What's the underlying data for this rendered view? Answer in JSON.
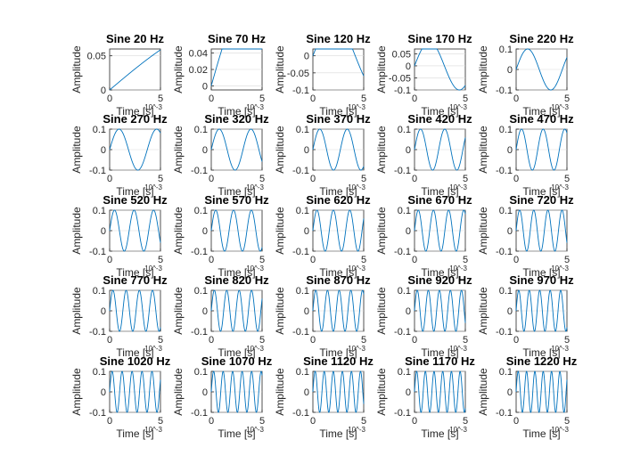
{
  "colors": {
    "line": "#0072bd",
    "axis": "#262626",
    "background": "#ffffff"
  },
  "chart_data": {
    "type": "line",
    "layout": "5x5 grid of subplots",
    "shared": {
      "xlabel": "Time [s]",
      "ylabel": "Amplitude",
      "x_exponent": "10^-3",
      "xlim": [
        0,
        5
      ],
      "x_ticks": [
        0,
        5
      ],
      "x_unit_scale": 0.001,
      "amplitude": 0.1
    },
    "subplots": [
      {
        "title": "Sine 20 Hz",
        "frequency_hz": 20,
        "ylim": [
          0,
          0.06
        ],
        "y_ticks": [
          0,
          0.05
        ],
        "y_tick_labels": [
          "0",
          "0.05"
        ]
      },
      {
        "title": "Sine 70 Hz",
        "frequency_hz": 70,
        "ylim": [
          -0.005,
          0.045
        ],
        "y_ticks": [
          0,
          0.02,
          0.04
        ],
        "y_tick_labels": [
          "0",
          "0.02",
          "0.04"
        ]
      },
      {
        "title": "Sine 120 Hz",
        "frequency_hz": 120,
        "ylim": [
          -0.1,
          0.02
        ],
        "y_ticks": [
          0,
          -0.05,
          -0.1
        ],
        "y_tick_labels": [
          "0",
          "-0.05",
          "-0.1"
        ]
      },
      {
        "title": "Sine 170 Hz",
        "frequency_hz": 170,
        "ylim": [
          -0.1,
          0.07
        ],
        "y_ticks": [
          0.05,
          0,
          -0.05,
          -0.1
        ],
        "y_tick_labels": [
          "0.05",
          "0",
          "-0.05",
          "-0.1"
        ]
      },
      {
        "title": "Sine 220 Hz",
        "frequency_hz": 220,
        "ylim": [
          -0.1,
          0.1
        ],
        "y_ticks": [
          0.1,
          0,
          -0.1
        ],
        "y_tick_labels": [
          "0.1",
          "0",
          "-0.1"
        ]
      },
      {
        "title": "Sine 270 Hz",
        "frequency_hz": 270,
        "ylim": [
          -0.1,
          0.1
        ],
        "y_ticks": [
          0.1,
          0,
          -0.1
        ],
        "y_tick_labels": [
          "0.1",
          "0",
          "-0.1"
        ]
      },
      {
        "title": "Sine 320 Hz",
        "frequency_hz": 320,
        "ylim": [
          -0.1,
          0.1
        ],
        "y_ticks": [
          0.1,
          0,
          -0.1
        ],
        "y_tick_labels": [
          "0.1",
          "0",
          "-0.1"
        ]
      },
      {
        "title": "Sine 370 Hz",
        "frequency_hz": 370,
        "ylim": [
          -0.1,
          0.1
        ],
        "y_ticks": [
          0.1,
          0,
          -0.1
        ],
        "y_tick_labels": [
          "0.1",
          "0",
          "-0.1"
        ]
      },
      {
        "title": "Sine 420 Hz",
        "frequency_hz": 420,
        "ylim": [
          -0.1,
          0.1
        ],
        "y_ticks": [
          0.1,
          0,
          -0.1
        ],
        "y_tick_labels": [
          "0.1",
          "0",
          "-0.1"
        ]
      },
      {
        "title": "Sine 470 Hz",
        "frequency_hz": 470,
        "ylim": [
          -0.1,
          0.1
        ],
        "y_ticks": [
          0.1,
          0,
          -0.1
        ],
        "y_tick_labels": [
          "0.1",
          "0",
          "-0.1"
        ]
      },
      {
        "title": "Sine 520 Hz",
        "frequency_hz": 520,
        "ylim": [
          -0.1,
          0.1
        ],
        "y_ticks": [
          0.1,
          0,
          -0.1
        ],
        "y_tick_labels": [
          "0.1",
          "0",
          "-0.1"
        ]
      },
      {
        "title": "Sine 570 Hz",
        "frequency_hz": 570,
        "ylim": [
          -0.1,
          0.1
        ],
        "y_ticks": [
          0.1,
          0,
          -0.1
        ],
        "y_tick_labels": [
          "0.1",
          "0",
          "-0.1"
        ]
      },
      {
        "title": "Sine 620 Hz",
        "frequency_hz": 620,
        "ylim": [
          -0.1,
          0.1
        ],
        "y_ticks": [
          0.1,
          0,
          -0.1
        ],
        "y_tick_labels": [
          "0.1",
          "0",
          "-0.1"
        ]
      },
      {
        "title": "Sine 670 Hz",
        "frequency_hz": 670,
        "ylim": [
          -0.1,
          0.1
        ],
        "y_ticks": [
          0.1,
          0,
          -0.1
        ],
        "y_tick_labels": [
          "0.1",
          "0",
          "-0.1"
        ]
      },
      {
        "title": "Sine 720 Hz",
        "frequency_hz": 720,
        "ylim": [
          -0.1,
          0.1
        ],
        "y_ticks": [
          0.1,
          0,
          -0.1
        ],
        "y_tick_labels": [
          "0.1",
          "0",
          "-0.1"
        ]
      },
      {
        "title": "Sine 770 Hz",
        "frequency_hz": 770,
        "ylim": [
          -0.1,
          0.1
        ],
        "y_ticks": [
          0.1,
          0,
          -0.1
        ],
        "y_tick_labels": [
          "0.1",
          "0",
          "-0.1"
        ]
      },
      {
        "title": "Sine 820 Hz",
        "frequency_hz": 820,
        "ylim": [
          -0.1,
          0.1
        ],
        "y_ticks": [
          0.1,
          0,
          -0.1
        ],
        "y_tick_labels": [
          "0.1",
          "0",
          "-0.1"
        ]
      },
      {
        "title": "Sine 870 Hz",
        "frequency_hz": 870,
        "ylim": [
          -0.1,
          0.1
        ],
        "y_ticks": [
          0.1,
          0,
          -0.1
        ],
        "y_tick_labels": [
          "0.1",
          "0",
          "-0.1"
        ]
      },
      {
        "title": "Sine 920 Hz",
        "frequency_hz": 920,
        "ylim": [
          -0.1,
          0.1
        ],
        "y_ticks": [
          0.1,
          0,
          -0.1
        ],
        "y_tick_labels": [
          "0.1",
          "0",
          "-0.1"
        ]
      },
      {
        "title": "Sine 970 Hz",
        "frequency_hz": 970,
        "ylim": [
          -0.1,
          0.1
        ],
        "y_ticks": [
          0.1,
          0,
          -0.1
        ],
        "y_tick_labels": [
          "0.1",
          "0",
          "-0.1"
        ]
      },
      {
        "title": "Sine 1020 Hz",
        "frequency_hz": 1020,
        "ylim": [
          -0.1,
          0.1
        ],
        "y_ticks": [
          0.1,
          0,
          -0.1
        ],
        "y_tick_labels": [
          "0.1",
          "0",
          "-0.1"
        ]
      },
      {
        "title": "Sine 1070 Hz",
        "frequency_hz": 1070,
        "ylim": [
          -0.1,
          0.1
        ],
        "y_ticks": [
          0.1,
          0,
          -0.1
        ],
        "y_tick_labels": [
          "0.1",
          "0",
          "-0.1"
        ]
      },
      {
        "title": "Sine 1120 Hz",
        "frequency_hz": 1120,
        "ylim": [
          -0.1,
          0.1
        ],
        "y_ticks": [
          0.1,
          0,
          -0.1
        ],
        "y_tick_labels": [
          "0.1",
          "0",
          "-0.1"
        ]
      },
      {
        "title": "Sine 1170 Hz",
        "frequency_hz": 1170,
        "ylim": [
          -0.1,
          0.1
        ],
        "y_ticks": [
          0.1,
          0,
          -0.1
        ],
        "y_tick_labels": [
          "0.1",
          "0",
          "-0.1"
        ]
      },
      {
        "title": "Sine 1220 Hz",
        "frequency_hz": 1220,
        "ylim": [
          -0.1,
          0.1
        ],
        "y_ticks": [
          0.1,
          0,
          -0.1
        ],
        "y_tick_labels": [
          "0.1",
          "0",
          "-0.1"
        ]
      }
    ]
  }
}
